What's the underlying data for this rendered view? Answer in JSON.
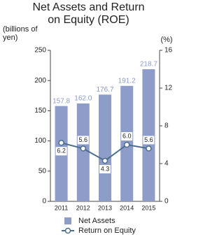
{
  "chart_data": {
    "type": "bar_line",
    "title": "Net Assets and Return on Equity (ROE)",
    "ylabel": "(billions of yen)",
    "y2label": "(%)",
    "categories": [
      "2011",
      "2012",
      "2013",
      "2014",
      "2015"
    ],
    "series": [
      {
        "name": "Net Assets",
        "type": "bar",
        "color": "#8d9cc9",
        "values": [
          157.8,
          162.0,
          176.7,
          191.2,
          218.7
        ],
        "value_labels": [
          "157.8",
          "162.0",
          "176.7",
          "191.2",
          "218.7"
        ]
      },
      {
        "name": "Return on Equity",
        "type": "line",
        "axis": "y2",
        "color": "#4c6d8c",
        "values": [
          6.2,
          5.6,
          4.3,
          6.0,
          5.6
        ],
        "value_labels": [
          "6.2",
          "5.6",
          "4.3",
          "6.0",
          "5.6"
        ]
      }
    ],
    "ylim": [
      0,
      250
    ],
    "yticks": [
      0,
      50,
      100,
      150,
      200,
      250
    ],
    "y2lim": [
      0,
      16
    ],
    "y2ticks": [
      0,
      4,
      8,
      12,
      16
    ]
  }
}
